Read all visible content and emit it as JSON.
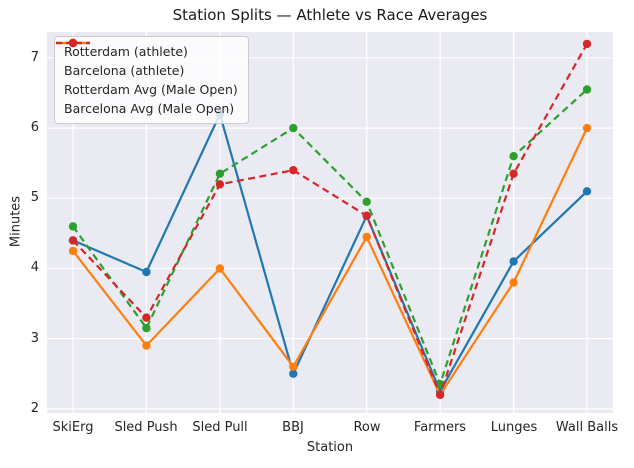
{
  "figure": {
    "background": "#ffffff",
    "plot_background": "#eaeaf2",
    "grid_color": "#ffffff",
    "text_color": "#262626"
  },
  "chart_data": {
    "type": "line",
    "title": "Station Splits — Athlete vs Race Averages",
    "xlabel": "Station",
    "ylabel": "Minutes",
    "unit": "minutes",
    "categories": [
      "SkiErg",
      "Sled Push",
      "Sled Pull",
      "BBJ",
      "Row",
      "Farmers",
      "Lunges",
      "Wall Balls"
    ],
    "yticks": [
      2,
      3,
      4,
      5,
      6,
      7
    ],
    "ylim": [
      1.94,
      7.37
    ],
    "grid": true,
    "legend_position": "upper-left",
    "series": [
      {
        "name": "Rotterdam (athlete)",
        "color": "#1f77b4",
        "style": "solid",
        "marker": "circle",
        "values": [
          4.4,
          3.95,
          6.2,
          2.5,
          4.75,
          2.25,
          4.1,
          5.1
        ]
      },
      {
        "name": "Barcelona (athlete)",
        "color": "#ff7f0e",
        "style": "solid",
        "marker": "circle",
        "values": [
          4.25,
          2.9,
          4.0,
          2.6,
          4.45,
          2.2,
          3.8,
          6.0
        ]
      },
      {
        "name": "Rotterdam Avg (Male Open)",
        "color": "#2ca02c",
        "style": "dashed",
        "marker": "circle",
        "values": [
          4.6,
          3.15,
          5.35,
          6.0,
          4.95,
          2.35,
          5.6,
          6.55
        ]
      },
      {
        "name": "Barcelona Avg (Male Open)",
        "color": "#d62728",
        "style": "dashed",
        "marker": "circle",
        "values": [
          4.4,
          3.3,
          5.2,
          5.4,
          4.75,
          2.2,
          5.35,
          7.2
        ]
      }
    ]
  }
}
